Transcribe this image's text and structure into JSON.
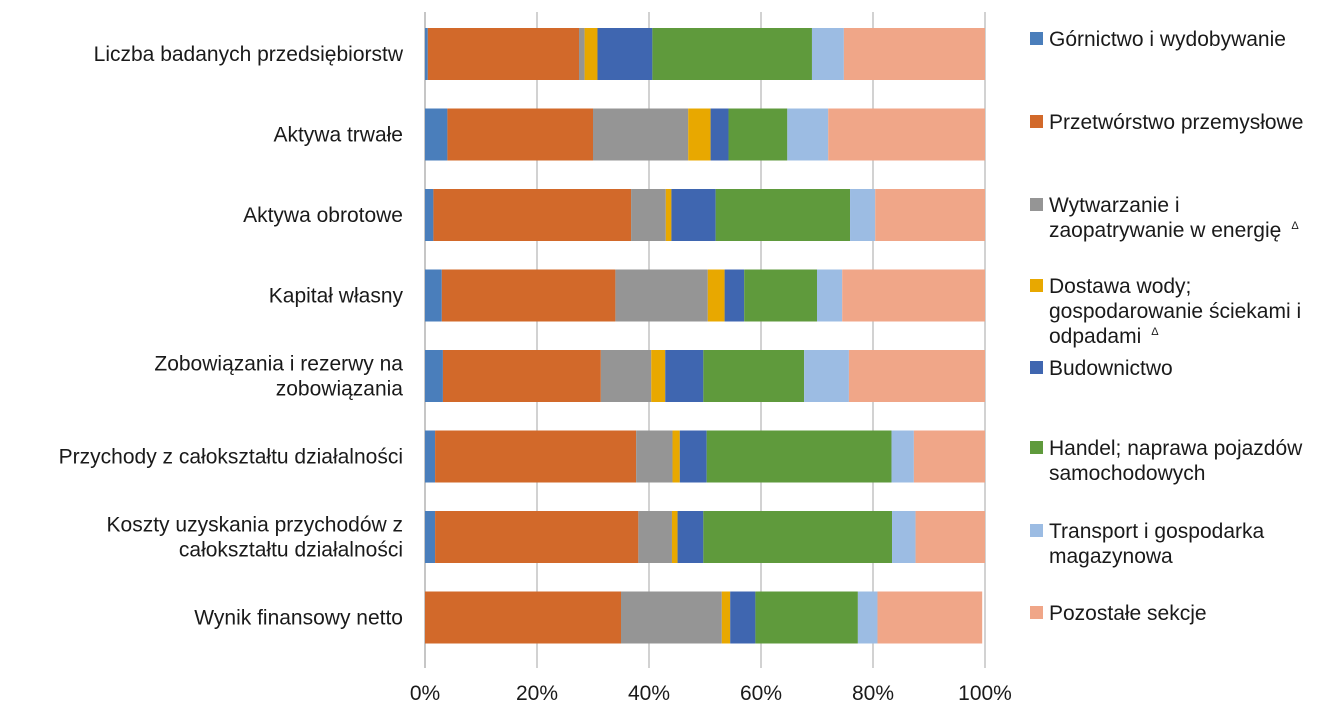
{
  "chart_data": {
    "type": "bar",
    "orientation": "horizontal",
    "stacked": "percent",
    "categories": [
      "Liczba badanych przedsiębiorstw",
      "Aktywa trwałe",
      "Aktywa obrotowe",
      "Kapitał własny",
      "Zobowiązania i rezerwy na zobowiązania",
      "Przychody z całokształtu działalności",
      "Koszty uzyskania przychodów z całokształtu działalności",
      "Wynik finansowy netto"
    ],
    "category_lines": [
      [
        "Liczba badanych przedsiębiorstw"
      ],
      [
        "Aktywa trwałe"
      ],
      [
        "Aktywa obrotowe"
      ],
      [
        "Kapitał własny"
      ],
      [
        "Zobowiązania i rezerwy na",
        "zobowiązania"
      ],
      [
        "Przychody z całokształtu działalności"
      ],
      [
        "Koszty uzyskania przychodów z",
        "całokształtu działalności"
      ],
      [
        "Wynik finansowy netto"
      ]
    ],
    "series": [
      {
        "name": "Górnictwo i wydobywanie",
        "color": "#4a7ebb",
        "values": [
          0.5,
          4.0,
          1.5,
          3.0,
          3.2,
          1.8,
          1.8,
          0.0
        ]
      },
      {
        "name": "Przetwórstwo przemysłowe",
        "color": "#d2692a",
        "values": [
          27.0,
          26.0,
          35.3,
          31.0,
          28.2,
          35.9,
          36.3,
          35.0
        ]
      },
      {
        "name": "Wytwarzanie i zaopatrywanie w energię",
        "color": "#959595",
        "values": [
          1.0,
          17.0,
          6.2,
          16.5,
          9.0,
          6.5,
          6.0,
          18.0
        ]
      },
      {
        "name": "Dostawa wody; gospodarowanie ściekami i odpadami",
        "color": "#e8a800",
        "values": [
          2.3,
          4.0,
          1.0,
          3.0,
          2.5,
          1.3,
          1.0,
          1.5
        ]
      },
      {
        "name": "Budownictwo",
        "color": "#3f66b0",
        "values": [
          9.8,
          3.2,
          7.9,
          3.5,
          6.8,
          4.8,
          4.6,
          4.5
        ]
      },
      {
        "name": "Handel; naprawa pojazdów samochodowych",
        "color": "#5f9a3c",
        "values": [
          28.5,
          10.5,
          24.0,
          13.0,
          18.0,
          33.0,
          33.7,
          18.3
        ]
      },
      {
        "name": "Transport i gospodarka magazynowa",
        "color": "#9cbce3",
        "values": [
          5.7,
          7.3,
          4.5,
          4.5,
          8.0,
          4.0,
          4.2,
          3.5
        ]
      },
      {
        "name": "Pozostałe sekcje",
        "color": "#f0a688",
        "values": [
          25.2,
          28.0,
          19.6,
          25.5,
          24.3,
          12.7,
          12.4,
          18.7
        ]
      }
    ],
    "legend_lines": [
      [
        "Górnictwo i wydobywanie"
      ],
      [
        "Przetwórstwo przemysłowe"
      ],
      [
        "Wytwarzanie i",
        "zaopatrywanie w energię"
      ],
      [
        "Dostawa wody;",
        "gospodarowanie ściekami i",
        "odpadami"
      ],
      [
        "Budownictwo"
      ],
      [
        "Handel; naprawa pojazdów",
        "samochodowych"
      ],
      [
        "Transport i gospodarka",
        "magazynowa"
      ],
      [
        "Pozostałe sekcje"
      ]
    ],
    "legend_marks": [
      "",
      "",
      "Δ",
      "Δ",
      "",
      "",
      "",
      ""
    ],
    "x_ticks": [
      "0%",
      "20%",
      "40%",
      "60%",
      "80%",
      "100%"
    ],
    "xlim": [
      0,
      100
    ],
    "grid": true,
    "legend_position": "right"
  }
}
